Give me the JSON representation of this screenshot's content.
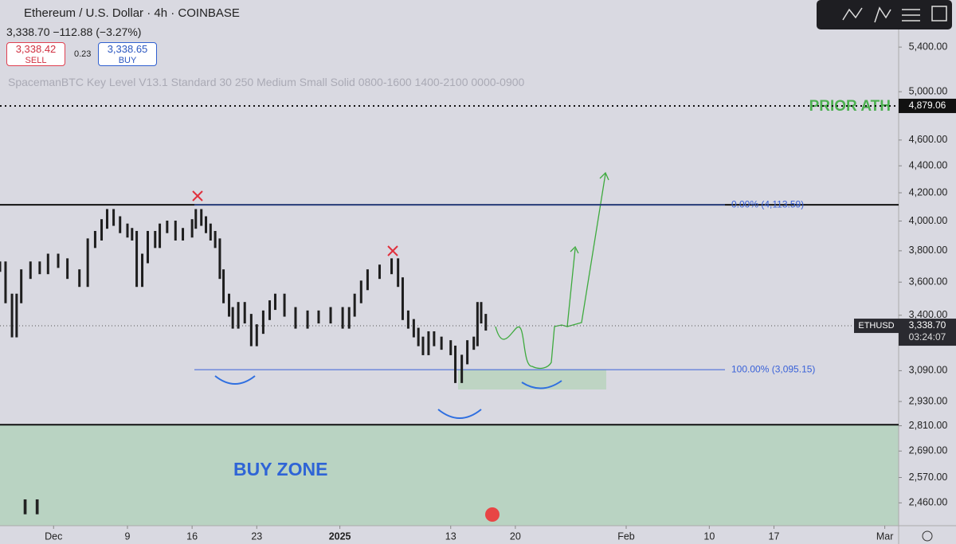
{
  "header": {
    "title": "Ethereum / U.S. Dollar · 4h · COINBASE",
    "quote": "3,338.70 −112.88 (−3.27%)",
    "sell_price": "3,338.42",
    "sell": "SELL",
    "spread": "0.23",
    "buy_price": "3,338.65",
    "buy": "BUY",
    "indicator": "SpacemanBTC Key Level V13.1 Standard 30 250 Medium Small Solid 0800-1600 1400-2100 0000-0900"
  },
  "chart_data": {
    "type": "candlestick",
    "log_scale": true,
    "color": "#1e1e1e",
    "x": [
      -5.8,
      -5.2,
      -4.5,
      -4,
      -3.5,
      -2.5,
      -1.5,
      -0.6,
      0.5,
      1.5,
      2.8,
      3.7,
      4.5,
      5.2,
      5.8,
      6.5,
      7.2,
      8,
      8.5,
      9,
      9.6,
      10.2,
      11,
      11.5,
      12.3,
      13.2,
      14,
      15,
      15.4,
      16,
      16.5,
      17,
      17.5,
      18,
      18.4,
      19,
      19.4,
      20,
      20.7,
      21.4,
      22,
      22.7,
      23.4,
      24,
      25,
      26.2,
      27.5,
      28.7,
      30,
      31.3,
      32,
      32.6,
      33.3,
      34,
      35.3,
      36.6,
      37.3,
      37.8,
      38.4,
      39,
      39.5,
      40,
      40.6,
      41.2,
      42,
      43,
      43.5,
      44.2,
      44.8,
      45.5,
      45.9,
      46.3,
      46.8
    ],
    "values": [
      3700,
      3500,
      3300,
      3500,
      3650,
      3700,
      3680,
      3750,
      3720,
      3650,
      3600,
      3850,
      3900,
      3980,
      4050,
      4000,
      3950,
      3920,
      3900,
      3600,
      3750,
      3900,
      3850,
      3950,
      3970,
      3900,
      3920,
      3980,
      4050,
      4000,
      3950,
      3900,
      3850,
      3650,
      3500,
      3420,
      3350,
      3450,
      3380,
      3250,
      3320,
      3400,
      3460,
      3500,
      3420,
      3350,
      3400,
      3380,
      3420,
      3350,
      3420,
      3500,
      3580,
      3650,
      3680,
      3720,
      3600,
      3400,
      3350,
      3300,
      3250,
      3200,
      3280,
      3250,
      3230,
      3200,
      3050,
      3150,
      3230,
      3250,
      3450,
      3380,
      3338.7
    ],
    "ylim": [
      2365,
      5857
    ],
    "xlim": [
      -5.8,
      91.5
    ],
    "yticks": [
      {
        "value": 5400,
        "label": "5,400.00"
      },
      {
        "value": 5000,
        "label": "5,000.00"
      },
      {
        "value": 4600,
        "label": "4,600.00"
      },
      {
        "value": 4400,
        "label": "4,400.00"
      },
      {
        "value": 4200,
        "label": "4,200.00"
      },
      {
        "value": 4000,
        "label": "4,000.00"
      },
      {
        "value": 3800,
        "label": "3,800.00"
      },
      {
        "value": 3600,
        "label": "3,600.00"
      },
      {
        "value": 3400,
        "label": "3,400.00"
      },
      {
        "value": 3090,
        "label": "3,090.00"
      },
      {
        "value": 2930,
        "label": "2,930.00"
      },
      {
        "value": 2810,
        "label": "2,810.00"
      },
      {
        "value": 2690,
        "label": "2,690.00"
      },
      {
        "value": 2570,
        "label": "2,570.00"
      },
      {
        "value": 2460,
        "label": "2,460.00"
      }
    ],
    "xticks": [
      {
        "value": 0,
        "label": "Dec"
      },
      {
        "value": 8,
        "label": "9"
      },
      {
        "value": 15,
        "label": "16"
      },
      {
        "value": 22,
        "label": "23"
      },
      {
        "value": 31,
        "label": "2025"
      },
      {
        "value": 43,
        "label": "13"
      },
      {
        "value": 50,
        "label": "20"
      },
      {
        "value": 62,
        "label": "Feb"
      },
      {
        "value": 71,
        "label": "10"
      },
      {
        "value": 78,
        "label": "17"
      },
      {
        "value": 90,
        "label": "Mar"
      }
    ],
    "levels": [
      {
        "value": 4113.59,
        "label": "0.00% (4,113.59)"
      },
      {
        "value": 3095.15,
        "label": "100.00% (3,095.15)"
      }
    ],
    "prior_ath": {
      "value": 4879.06,
      "label": "4,879.06",
      "text": "PRIOR ATH"
    },
    "buy_zone": {
      "top": 2815,
      "text": "BUY ZONE"
    },
    "last_price": {
      "value": 3338.7,
      "label": "3,338.70",
      "symbol": "ETHUSD",
      "countdown": "03:24:07"
    }
  }
}
